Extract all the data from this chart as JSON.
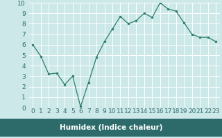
{
  "x": [
    0,
    1,
    2,
    3,
    4,
    5,
    6,
    7,
    8,
    9,
    10,
    11,
    12,
    13,
    14,
    15,
    16,
    17,
    18,
    19,
    20,
    21,
    22,
    23
  ],
  "y": [
    6.0,
    4.9,
    3.2,
    3.3,
    2.2,
    3.0,
    0.1,
    2.4,
    4.8,
    6.3,
    7.5,
    8.7,
    8.0,
    8.3,
    9.0,
    8.6,
    10.0,
    9.4,
    9.2,
    8.1,
    7.0,
    6.7,
    6.7,
    6.3
  ],
  "xlabel": "Humidex (Indice chaleur)",
  "xlim": [
    -0.5,
    23.5
  ],
  "ylim": [
    0,
    10
  ],
  "xticks": [
    0,
    1,
    2,
    3,
    4,
    5,
    6,
    7,
    8,
    9,
    10,
    11,
    12,
    13,
    14,
    15,
    16,
    17,
    18,
    19,
    20,
    21,
    22,
    23
  ],
  "yticks": [
    0,
    1,
    2,
    3,
    4,
    5,
    6,
    7,
    8,
    9,
    10
  ],
  "line_color": "#2d7d6e",
  "marker_color": "#2d7d6e",
  "plot_bg_color": "#cce8e8",
  "fig_bg_color": "#cce8e8",
  "grid_color": "#ffffff",
  "xlabel_bg": "#2d6b6b",
  "xlabel_color": "#ffffff",
  "tick_label_color": "#2d6b6b",
  "label_fontsize": 7.5,
  "tick_fontsize": 6.5
}
